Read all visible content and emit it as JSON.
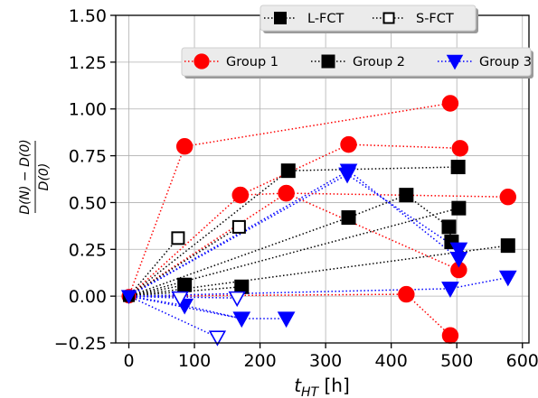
{
  "chart_data": {
    "type": "scatter",
    "xlabel": "t_HT [h]",
    "xlabel_main": "t",
    "xlabel_sub": "HT",
    "xlabel_unit": " [h]",
    "ylabel_numerator": "D(N) − D(0)",
    "ylabel_denominator": "D(0)",
    "xlim": [
      -20,
      610
    ],
    "ylim": [
      -0.25,
      1.5
    ],
    "xticks": [
      0,
      100,
      200,
      300,
      400,
      500,
      600
    ],
    "yticks": [
      -0.25,
      0.0,
      0.25,
      0.5,
      0.75,
      1.0,
      1.25,
      1.5
    ],
    "xtick_labels": [
      "0",
      "100",
      "200",
      "300",
      "400",
      "500",
      "600"
    ],
    "ytick_labels": [
      "−0.25",
      "0.00",
      "0.25",
      "0.50",
      "0.75",
      "1.00",
      "1.25",
      "1.50"
    ],
    "grid": true,
    "origin": [
      0,
      0
    ],
    "legend_fct": {
      "placement": "top-center",
      "entries": [
        {
          "label": "L-FCT",
          "marker": "square-filled"
        },
        {
          "label": "S-FCT",
          "marker": "square-open"
        }
      ]
    },
    "legend_groups": {
      "placement": "upper-right",
      "entries": [
        {
          "label": "Group 1",
          "color": "#ff0000",
          "marker": "circle"
        },
        {
          "label": "Group 2",
          "color": "#000000",
          "marker": "square"
        },
        {
          "label": "Group 3",
          "color": "#0000ff",
          "marker": "triangle-down"
        }
      ]
    },
    "series": [
      {
        "name": "Group 1",
        "color": "#ff0000",
        "marker": "circle",
        "points": [
          {
            "x": 85,
            "y": 0.8,
            "next": [
              490,
              1.03
            ]
          },
          {
            "x": 490,
            "y": 1.03
          },
          {
            "x": 170,
            "y": 0.54,
            "next": [
              335,
              0.81
            ]
          },
          {
            "x": 335,
            "y": 0.81,
            "next": [
              505,
              0.79
            ]
          },
          {
            "x": 505,
            "y": 0.79
          },
          {
            "x": 240,
            "y": 0.55,
            "next": [
              578,
              0.53
            ]
          },
          {
            "x": 578,
            "y": 0.53
          },
          {
            "x": 170,
            "y": 0.54,
            "next": [
              240,
              0.55
            ]
          },
          {
            "x": 240,
            "y": 0.55,
            "next": [
              503,
              0.14
            ]
          },
          {
            "x": 503,
            "y": 0.14
          },
          {
            "x": 423,
            "y": 0.01,
            "next": [
              490,
              -0.21
            ]
          },
          {
            "x": 490,
            "y": -0.21
          }
        ]
      },
      {
        "name": "Group 2",
        "color": "#000000",
        "marker": "square",
        "points": [
          {
            "x": 243,
            "y": 0.67,
            "next": [
              502,
              0.69
            ]
          },
          {
            "x": 502,
            "y": 0.69
          },
          {
            "x": 85,
            "y": 0.06
          },
          {
            "x": 172,
            "y": 0.05
          },
          {
            "x": 335,
            "y": 0.42,
            "next": [
              423,
              0.54
            ]
          },
          {
            "x": 423,
            "y": 0.54,
            "next": [
              488,
              0.37
            ]
          },
          {
            "x": 488,
            "y": 0.37,
            "next": [
              492,
              0.29
            ]
          },
          {
            "x": 492,
            "y": 0.29
          },
          {
            "x": 503,
            "y": 0.47
          },
          {
            "x": 578,
            "y": 0.27
          }
        ]
      },
      {
        "name": "Group 3",
        "color": "#0000ff",
        "marker": "triangle-down",
        "points": [
          {
            "x": 335,
            "y": 0.67,
            "next": [
              503,
              0.2
            ]
          },
          {
            "x": 333,
            "y": 0.65,
            "next": [
              503,
              0.25
            ]
          },
          {
            "x": 503,
            "y": 0.25
          },
          {
            "x": 503,
            "y": 0.2
          },
          {
            "x": 85,
            "y": -0.05,
            "next": [
              172,
              -0.12
            ]
          },
          {
            "x": 172,
            "y": -0.12,
            "next": [
              240,
              -0.12
            ]
          },
          {
            "x": 240,
            "y": -0.12
          },
          {
            "x": 490,
            "y": 0.04
          },
          {
            "x": 578,
            "y": 0.1
          }
        ]
      },
      {
        "name": "S-FCT",
        "color": "#000000",
        "marker": "square-open",
        "points": [
          {
            "x": 75,
            "y": 0.31
          },
          {
            "x": 168,
            "y": 0.37
          }
        ]
      },
      {
        "name": "S-FCT Group 3",
        "color": "#0000ff",
        "marker": "triangle-open",
        "points": [
          {
            "x": 78,
            "y": -0.01
          },
          {
            "x": 165,
            "y": -0.01
          },
          {
            "x": 135,
            "y": -0.22
          }
        ]
      }
    ],
    "extra_segments": [
      {
        "color": "#ff0000",
        "from": [
          0,
          0
        ],
        "to": [
          170,
          0.54
        ]
      },
      {
        "color": "#ff0000",
        "from": [
          0,
          0
        ],
        "to": [
          240,
          0.55
        ]
      },
      {
        "color": "#ff0000",
        "from": [
          0,
          0
        ],
        "to": [
          423,
          0.01
        ]
      },
      {
        "color": "#ff0000",
        "from": [
          0,
          0
        ],
        "to": [
          85,
          0.8
        ]
      },
      {
        "color": "#000000",
        "from": [
          0,
          0
        ],
        "to": [
          243,
          0.67
        ]
      },
      {
        "color": "#000000",
        "from": [
          0,
          0
        ],
        "to": [
          85,
          0.06
        ]
      },
      {
        "color": "#000000",
        "from": [
          0,
          0
        ],
        "to": [
          172,
          0.05
        ]
      },
      {
        "color": "#000000",
        "from": [
          0,
          0
        ],
        "to": [
          335,
          0.42
        ]
      },
      {
        "color": "#000000",
        "from": [
          0,
          0
        ],
        "to": [
          503,
          0.47
        ]
      },
      {
        "color": "#000000",
        "from": [
          0,
          0
        ],
        "to": [
          578,
          0.27
        ]
      },
      {
        "color": "#000000",
        "from": [
          0,
          0
        ],
        "to": [
          168,
          0.37
        ]
      },
      {
        "color": "#000000",
        "from": [
          0,
          0
        ],
        "to": [
          75,
          0.31
        ]
      },
      {
        "color": "#0000ff",
        "from": [
          0,
          0
        ],
        "to": [
          335,
          0.67
        ]
      },
      {
        "color": "#0000ff",
        "from": [
          0,
          0
        ],
        "to": [
          333,
          0.65
        ]
      },
      {
        "color": "#0000ff",
        "from": [
          0,
          0
        ],
        "to": [
          85,
          -0.05
        ]
      },
      {
        "color": "#0000ff",
        "from": [
          0,
          0
        ],
        "to": [
          490,
          0.04
        ]
      },
      {
        "color": "#0000ff",
        "from": [
          490,
          0.04
        ],
        "to": [
          578,
          0.1
        ]
      },
      {
        "color": "#0000ff",
        "from": [
          0,
          0
        ],
        "to": [
          78,
          -0.01
        ]
      },
      {
        "color": "#0000ff",
        "from": [
          0,
          0
        ],
        "to": [
          165,
          -0.01
        ]
      },
      {
        "color": "#0000ff",
        "from": [
          0,
          0
        ],
        "to": [
          135,
          -0.22
        ]
      },
      {
        "color": "#0000ff",
        "from": [
          0,
          0
        ],
        "to": [
          172,
          -0.12
        ]
      }
    ]
  }
}
